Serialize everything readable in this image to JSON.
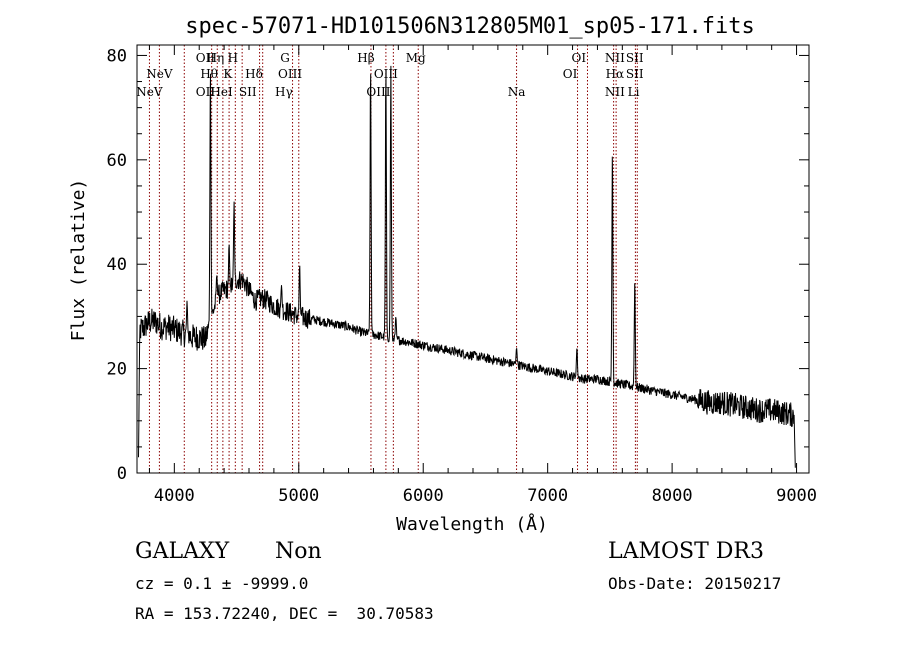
{
  "chart_data": {
    "type": "line",
    "title": "spec-57071-HD101506N312805M01_sp05-171.fits",
    "xlabel": "Wavelength (Å)",
    "ylabel": "Flux (relative)",
    "xlim": [
      3700,
      9100
    ],
    "ylim": [
      0,
      82
    ],
    "xticks": [
      4000,
      5000,
      6000,
      7000,
      8000,
      9000
    ],
    "yticks": [
      0,
      20,
      40,
      60,
      80
    ],
    "grid": false,
    "line_color": "#000000",
    "marker_color": "#8b0000",
    "continuum": [
      [
        3700,
        27
      ],
      [
        3760,
        28
      ],
      [
        3800,
        29
      ],
      [
        3850,
        29
      ],
      [
        3900,
        28
      ],
      [
        3950,
        28
      ],
      [
        4000,
        27.5
      ],
      [
        4050,
        27
      ],
      [
        4100,
        26.5
      ],
      [
        4150,
        26
      ],
      [
        4200,
        26
      ],
      [
        4250,
        25.5
      ],
      [
        4300,
        30
      ],
      [
        4350,
        34
      ],
      [
        4400,
        35
      ],
      [
        4450,
        35.5
      ],
      [
        4500,
        37
      ],
      [
        4550,
        37
      ],
      [
        4600,
        35
      ],
      [
        4650,
        33
      ],
      [
        4700,
        33.5
      ],
      [
        4750,
        33
      ],
      [
        4800,
        32
      ],
      [
        4850,
        31.5
      ],
      [
        4900,
        31
      ],
      [
        4950,
        30.5
      ],
      [
        5000,
        30
      ],
      [
        5100,
        29.5
      ],
      [
        5200,
        29
      ],
      [
        5300,
        28.5
      ],
      [
        5400,
        28
      ],
      [
        5500,
        27
      ],
      [
        5600,
        26.5
      ],
      [
        5700,
        26
      ],
      [
        5800,
        25.5
      ],
      [
        5900,
        25
      ],
      [
        6000,
        24.5
      ],
      [
        6100,
        24
      ],
      [
        6200,
        23.5
      ],
      [
        6300,
        23
      ],
      [
        6400,
        22.5
      ],
      [
        6500,
        22
      ],
      [
        6600,
        21.5
      ],
      [
        6700,
        21
      ],
      [
        6800,
        20.5
      ],
      [
        6900,
        20
      ],
      [
        7000,
        19.5
      ],
      [
        7100,
        19
      ],
      [
        7200,
        18.5
      ],
      [
        7300,
        18
      ],
      [
        7400,
        18
      ],
      [
        7500,
        17.5
      ],
      [
        7600,
        17
      ],
      [
        7700,
        16.5
      ],
      [
        7800,
        16
      ],
      [
        7900,
        15.5
      ],
      [
        8000,
        15
      ],
      [
        8100,
        14.5
      ],
      [
        8200,
        14
      ],
      [
        8300,
        13.5
      ],
      [
        8400,
        13.5
      ],
      [
        8500,
        13
      ],
      [
        8600,
        12.5
      ],
      [
        8700,
        12
      ],
      [
        8800,
        12
      ],
      [
        8900,
        11.5
      ],
      [
        8980,
        11
      ]
    ],
    "emission_lines": [
      [
        4102,
        33
      ],
      [
        4290,
        78
      ],
      [
        4341,
        38
      ],
      [
        4440,
        44
      ],
      [
        4480,
        52
      ],
      [
        4861,
        36
      ],
      [
        5007,
        40
      ],
      [
        5577,
        78
      ],
      [
        5700,
        78
      ],
      [
        5740,
        78
      ],
      [
        5780,
        30
      ],
      [
        6750,
        24
      ],
      [
        7235,
        24
      ],
      [
        7520,
        62
      ],
      [
        7700,
        37
      ]
    ],
    "line_labels": [
      {
        "text": "NeV",
        "wavelength": 3800,
        "row": 2
      },
      {
        "text": "NeV",
        "wavelength": 3880,
        "row": 1
      },
      {
        "text": "OII",
        "wavelength": 4250,
        "row": 0
      },
      {
        "text": "Hη",
        "wavelength": 4330,
        "row": 0
      },
      {
        "text": "Hθ",
        "wavelength": 4280,
        "row": 1
      },
      {
        "text": "OII",
        "wavelength": 4250,
        "row": 2
      },
      {
        "text": "HeI",
        "wavelength": 4380,
        "row": 2
      },
      {
        "text": "H",
        "wavelength": 4470,
        "row": 0
      },
      {
        "text": "K",
        "wavelength": 4430,
        "row": 1
      },
      {
        "text": "Hδ",
        "wavelength": 4640,
        "row": 1
      },
      {
        "text": "SII",
        "wavelength": 4590,
        "row": 2
      },
      {
        "text": "G",
        "wavelength": 4890,
        "row": 0
      },
      {
        "text": "OIII",
        "wavelength": 4930,
        "row": 1
      },
      {
        "text": "Hγ",
        "wavelength": 4880,
        "row": 2
      },
      {
        "text": "Hβ",
        "wavelength": 5540,
        "row": 0
      },
      {
        "text": "OIII",
        "wavelength": 5700,
        "row": 1
      },
      {
        "text": "OIII",
        "wavelength": 5640,
        "row": 2
      },
      {
        "text": "Mg",
        "wavelength": 5940,
        "row": 0
      },
      {
        "text": "Na",
        "wavelength": 6750,
        "row": 2
      },
      {
        "text": "OI",
        "wavelength": 7250,
        "row": 0
      },
      {
        "text": "OI",
        "wavelength": 7180,
        "row": 1
      },
      {
        "text": "NII",
        "wavelength": 7540,
        "row": 0
      },
      {
        "text": "Hα",
        "wavelength": 7540,
        "row": 1
      },
      {
        "text": "NII",
        "wavelength": 7540,
        "row": 2
      },
      {
        "text": "SII",
        "wavelength": 7700,
        "row": 0
      },
      {
        "text": "SII",
        "wavelength": 7700,
        "row": 1
      },
      {
        "text": "Li",
        "wavelength": 7690,
        "row": 2
      }
    ],
    "marker_lines": [
      3800,
      3880,
      4080,
      4300,
      4345,
      4390,
      4440,
      4490,
      4545,
      4685,
      4710,
      4950,
      5000,
      5580,
      5700,
      5760,
      5960,
      6750,
      7240,
      7320,
      7530,
      7550,
      7705,
      7720
    ]
  },
  "info": {
    "object_class": "GALAXY",
    "subclass": "Non",
    "survey": "LAMOST DR3",
    "redshift_line": "cz = 0.1 ± -9999.0",
    "obs_date": "Obs-Date: 20150217",
    "coords": "RA = 153.72240, DEC =  30.70583"
  }
}
